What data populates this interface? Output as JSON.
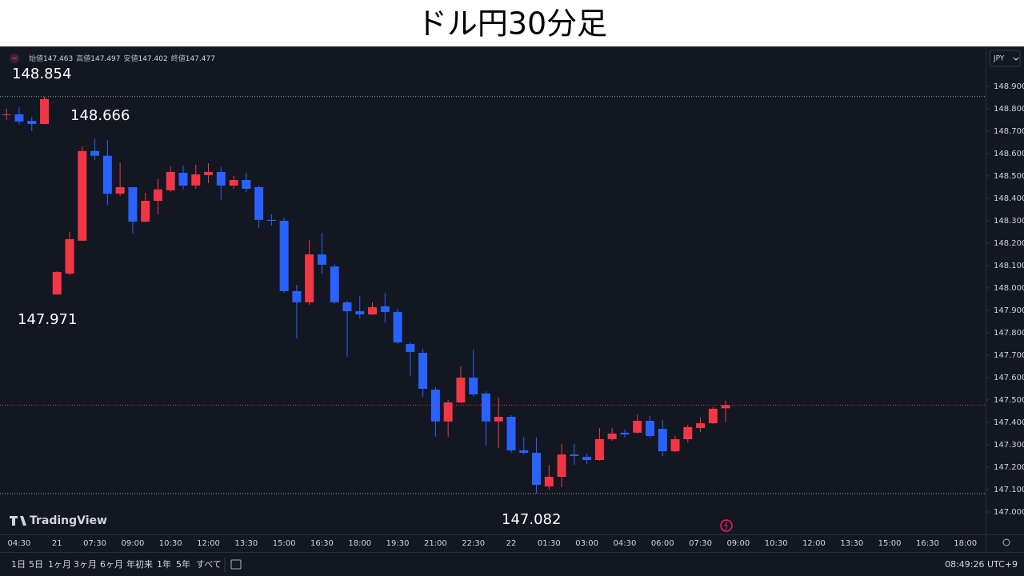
{
  "chart_data": {
    "type": "candlestick",
    "title": "ドル円30分足",
    "ohlc_labels": [
      "始値",
      "高値",
      "安値",
      "終値"
    ],
    "currency": "JPY",
    "brand": "TradingView",
    "up_color": "#f23645",
    "down_color": "#2962ff",
    "grid": false,
    "price_line": true,
    "categories": [
      null,
      "04:30",
      null,
      null,
      "21",
      null,
      null,
      "07:30",
      null,
      null,
      "09:00",
      null,
      null,
      "10:30",
      null,
      null,
      "12:00",
      null,
      null,
      "13:30",
      null,
      null,
      "15:00",
      null,
      null,
      "16:30",
      null,
      null,
      "18:00",
      null,
      null,
      "19:30",
      null,
      null,
      "21:00",
      null,
      null,
      "22:30",
      null,
      null,
      "22",
      null,
      null,
      "01:30",
      null,
      null,
      "03:00",
      null,
      null,
      "04:30",
      null,
      null,
      "06:00",
      null,
      null,
      "07:30",
      null,
      null,
      "09:00",
      null,
      null,
      "10:30",
      null,
      null,
      "12:00",
      null,
      null,
      "13:30",
      null,
      null,
      "15:00",
      null,
      null,
      "16:30",
      null,
      null,
      "18:00",
      null
    ],
    "open": [
      148.772,
      148.775,
      148.746,
      148.732,
      147.971,
      148.064,
      148.211,
      148.611,
      148.59,
      148.421,
      148.45,
      148.296,
      148.389,
      148.436,
      148.514,
      148.457,
      148.504,
      148.518,
      148.457,
      148.482,
      148.45,
      148.304,
      148.3,
      147.986,
      147.936,
      148.15,
      148.096,
      147.936,
      147.896,
      147.882,
      147.918,
      147.893,
      147.75,
      147.711,
      147.546,
      147.404,
      147.489,
      147.6,
      147.529,
      147.404,
      147.425,
      147.275,
      147.264,
      147.114,
      147.157,
      147.257,
      147.246,
      147.232,
      147.325,
      147.354,
      147.354,
      147.407,
      147.371,
      147.271,
      147.325,
      147.375,
      147.396,
      147.463,
      null,
      null,
      null,
      null,
      null,
      null,
      null,
      null,
      null,
      null,
      null,
      null,
      null,
      null,
      null,
      null,
      null,
      null,
      null,
      null
    ],
    "high": [
      148.8,
      148.807,
      148.764,
      148.854,
      148.075,
      148.25,
      148.632,
      148.666,
      148.66,
      148.56,
      148.45,
      148.425,
      148.486,
      148.543,
      148.546,
      148.55,
      148.557,
      148.539,
      148.5,
      148.514,
      148.457,
      148.329,
      148.314,
      148.014,
      148.214,
      148.246,
      148.107,
      147.943,
      147.964,
      147.936,
      147.979,
      147.907,
      147.757,
      147.729,
      147.557,
      147.5,
      147.65,
      147.725,
      147.539,
      147.511,
      147.432,
      147.336,
      147.332,
      147.211,
      147.304,
      147.304,
      147.261,
      147.375,
      147.375,
      147.368,
      147.436,
      147.429,
      147.411,
      147.339,
      147.389,
      147.421,
      147.468,
      147.497,
      null,
      null,
      null,
      null,
      null,
      null,
      null,
      null,
      null,
      null,
      null,
      null,
      null,
      null,
      null,
      null,
      null,
      null,
      null,
      null
    ],
    "low": [
      148.75,
      148.729,
      148.7,
      148.73,
      147.971,
      148.057,
      148.21,
      148.571,
      148.37,
      148.41,
      148.243,
      148.293,
      148.329,
      148.43,
      148.44,
      148.443,
      148.468,
      148.393,
      148.443,
      148.429,
      148.268,
      148.279,
      147.979,
      147.775,
      147.925,
      148.064,
      147.929,
      147.693,
      147.864,
      147.879,
      147.846,
      147.75,
      147.607,
      147.514,
      147.336,
      147.336,
      147.486,
      147.514,
      147.296,
      147.286,
      147.264,
      147.257,
      147.082,
      147.1,
      147.111,
      147.211,
      147.214,
      147.229,
      147.318,
      147.332,
      147.35,
      147.332,
      147.25,
      147.268,
      147.311,
      147.357,
      147.393,
      147.402,
      null,
      null,
      null,
      null,
      null,
      null,
      null,
      null,
      null,
      null,
      null,
      null,
      null,
      null,
      null,
      null,
      null,
      null,
      null,
      null
    ],
    "close": [
      148.775,
      148.743,
      148.732,
      148.843,
      148.071,
      148.218,
      148.611,
      148.59,
      148.421,
      148.45,
      148.296,
      148.389,
      148.44,
      148.518,
      148.457,
      148.507,
      148.518,
      148.457,
      148.482,
      148.443,
      148.304,
      148.3,
      147.986,
      147.936,
      148.15,
      148.104,
      147.936,
      147.896,
      147.882,
      147.914,
      147.893,
      147.757,
      147.714,
      147.55,
      147.404,
      147.489,
      147.6,
      147.525,
      147.404,
      147.425,
      147.275,
      147.264,
      147.121,
      147.157,
      147.257,
      147.25,
      147.232,
      147.325,
      147.35,
      147.346,
      147.407,
      147.339,
      147.271,
      147.325,
      147.379,
      147.396,
      147.461,
      147.477,
      null,
      null,
      null,
      null,
      null,
      null,
      null,
      null,
      null,
      null,
      null,
      null,
      null,
      null,
      null,
      null,
      null,
      null,
      null,
      null
    ],
    "ylim": [
      146.9,
      149.064
    ],
    "yticks": [
      {
        "value": 147.0,
        "label": "147.000"
      },
      {
        "value": 147.1,
        "label": "147.100"
      },
      {
        "value": 147.2,
        "label": "147.200"
      },
      {
        "value": 147.3,
        "label": "147.300"
      },
      {
        "value": 147.4,
        "label": "147.400"
      },
      {
        "value": 147.5,
        "label": "147.500"
      },
      {
        "value": 147.6,
        "label": "147.600"
      },
      {
        "value": 147.7,
        "label": "147.700"
      },
      {
        "value": 147.8,
        "label": "147.800"
      },
      {
        "value": 147.9,
        "label": "147.900"
      },
      {
        "value": 148.0,
        "label": "148.000"
      },
      {
        "value": 148.1,
        "label": "148.100"
      },
      {
        "value": 148.2,
        "label": "148.200"
      },
      {
        "value": 148.3,
        "label": "148.300"
      },
      {
        "value": 148.4,
        "label": "148.400"
      },
      {
        "value": 148.5,
        "label": "148.500"
      },
      {
        "value": 148.6,
        "label": "148.600"
      },
      {
        "value": 148.7,
        "label": "148.700"
      },
      {
        "value": 148.8,
        "label": "148.800"
      },
      {
        "value": 148.9,
        "label": "148.900"
      }
    ],
    "annotations": [
      {
        "value": 148.854,
        "line": true
      },
      {
        "value": 148.666,
        "line": false
      },
      {
        "value": 147.971,
        "line": false
      },
      {
        "value": 147.082,
        "line": true
      }
    ]
  },
  "toolbar": {
    "ranges": [
      "1日",
      "5日",
      "1ヶ月",
      "3ヶ月",
      "6ヶ月",
      "年初来",
      "1年",
      "5年",
      "すべて"
    ],
    "clock": "08:49:26 UTC+9"
  }
}
